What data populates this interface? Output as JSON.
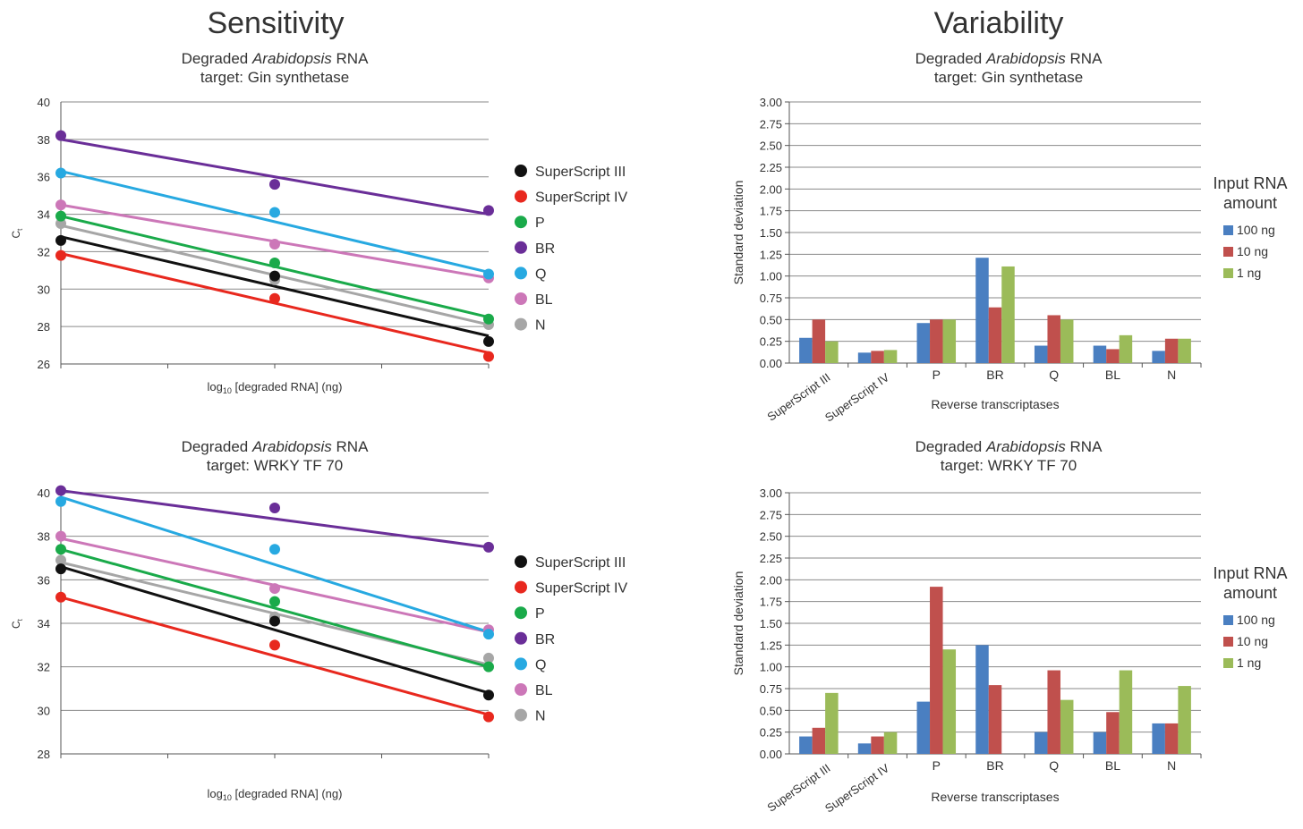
{
  "headings": {
    "left": "Sensitivity",
    "right": "Variability"
  },
  "legend_title": [
    "Input RNA",
    "amount"
  ],
  "colors": {
    "SuperScript III": "#111111",
    "SuperScript IV": "#e8281e",
    "P": "#1aaa4a",
    "BR": "#6a2e98",
    "Q": "#27a9e1",
    "BL": "#cc77b8",
    "N": "#a6a6a6",
    "100 ng": "#4a7fc1",
    "10 ng": "#c0504d",
    "1 ng": "#9bbb59"
  },
  "chart_data": [
    {
      "type": "scatter",
      "title": [
        "Degraded |Arabidopsis| RNA",
        "target: Gin synthetase"
      ],
      "xlabel": "log10 [degraded RNA] (ng)",
      "ylabel": "Ct",
      "ylim": [
        26,
        40
      ],
      "yticks": [
        26,
        28,
        30,
        32,
        34,
        36,
        38,
        40
      ],
      "x": [
        0,
        1,
        2
      ],
      "series": [
        {
          "name": "SuperScript III",
          "points": [
            32.6,
            30.7,
            27.2
          ],
          "fit": [
            32.8,
            27.5
          ]
        },
        {
          "name": "SuperScript IV",
          "points": [
            31.8,
            29.5,
            26.4
          ],
          "fit": [
            31.9,
            26.6
          ]
        },
        {
          "name": "P",
          "points": [
            33.9,
            31.4,
            28.4
          ],
          "fit": [
            33.9,
            28.5
          ]
        },
        {
          "name": "BR",
          "points": [
            38.2,
            35.6,
            34.2
          ],
          "fit": [
            38.0,
            34.0
          ]
        },
        {
          "name": "Q",
          "points": [
            36.2,
            34.1,
            30.8
          ],
          "fit": [
            36.3,
            30.9
          ]
        },
        {
          "name": "BL",
          "points": [
            34.5,
            32.4,
            30.6
          ],
          "fit": [
            34.5,
            30.6
          ]
        },
        {
          "name": "N",
          "points": [
            33.5,
            30.5,
            28.1
          ],
          "fit": [
            33.4,
            28.1
          ]
        }
      ]
    },
    {
      "type": "bar",
      "title": [
        "Degraded |Arabidopsis| RNA",
        "target: Gin synthetase"
      ],
      "xlabel": "Reverse transcriptases",
      "ylabel": "Standard deviation",
      "ylim": [
        0,
        3
      ],
      "yticks": [
        "0.00",
        "0.25",
        "0.50",
        "0.75",
        "1.00",
        "1.25",
        "1.50",
        "1.75",
        "2.00",
        "2.25",
        "2.50",
        "2.75",
        "3.00"
      ],
      "categories": [
        "SuperScript III",
        "SuperScript IV",
        "P",
        "BR",
        "Q",
        "BL",
        "N"
      ],
      "series": [
        {
          "name": "100 ng",
          "values": [
            0.29,
            0.12,
            0.46,
            1.21,
            0.2,
            0.2,
            0.14
          ]
        },
        {
          "name": "10 ng",
          "values": [
            0.5,
            0.14,
            0.5,
            0.64,
            0.55,
            0.16,
            0.28
          ]
        },
        {
          "name": "1 ng",
          "values": [
            0.25,
            0.15,
            0.5,
            1.11,
            0.5,
            0.32,
            0.28
          ]
        }
      ]
    },
    {
      "type": "scatter",
      "title": [
        "Degraded |Arabidopsis| RNA",
        "target: WRKY TF 70"
      ],
      "xlabel": "log10 [degraded RNA] (ng)",
      "ylabel": "Ct",
      "ylim": [
        28,
        40
      ],
      "yticks": [
        28,
        30,
        32,
        34,
        36,
        38,
        40
      ],
      "x": [
        0,
        1,
        2
      ],
      "series": [
        {
          "name": "SuperScript III",
          "points": [
            36.5,
            34.1,
            30.7
          ],
          "fit": [
            36.6,
            30.8
          ]
        },
        {
          "name": "SuperScript IV",
          "points": [
            35.2,
            33.0,
            29.7
          ],
          "fit": [
            35.2,
            29.8
          ]
        },
        {
          "name": "P",
          "points": [
            37.4,
            35.0,
            32.0
          ],
          "fit": [
            37.4,
            32.0
          ]
        },
        {
          "name": "BR",
          "points": [
            40.1,
            39.3,
            37.5
          ],
          "fit": [
            40.1,
            37.5
          ]
        },
        {
          "name": "Q",
          "points": [
            39.6,
            37.4,
            33.5
          ],
          "fit": [
            39.8,
            33.6
          ]
        },
        {
          "name": "BL",
          "points": [
            38.0,
            35.6,
            33.7
          ],
          "fit": [
            37.9,
            33.6
          ]
        },
        {
          "name": "N",
          "points": [
            36.9,
            34.3,
            32.4
          ],
          "fit": [
            36.8,
            32.1
          ]
        }
      ]
    },
    {
      "type": "bar",
      "title": [
        "Degraded |Arabidopsis| RNA",
        "target: WRKY TF 70"
      ],
      "xlabel": "Reverse transcriptases",
      "ylabel": "Standard deviation",
      "ylim": [
        0,
        3
      ],
      "yticks": [
        "0.00",
        "0.25",
        "0.50",
        "0.75",
        "1.00",
        "1.25",
        "1.50",
        "1.75",
        "2.00",
        "2.25",
        "2.50",
        "2.75",
        "3.00"
      ],
      "categories": [
        "SuperScript III",
        "SuperScript IV",
        "P",
        "BR",
        "Q",
        "BL",
        "N"
      ],
      "series": [
        {
          "name": "100 ng",
          "values": [
            0.2,
            0.12,
            0.6,
            1.25,
            0.25,
            0.25,
            0.35
          ]
        },
        {
          "name": "10 ng",
          "values": [
            0.3,
            0.2,
            1.92,
            0.79,
            0.96,
            0.48,
            0.35
          ]
        },
        {
          "name": "1 ng",
          "values": [
            0.7,
            0.25,
            1.2,
            0.0,
            0.62,
            0.96,
            0.78
          ]
        }
      ]
    }
  ]
}
